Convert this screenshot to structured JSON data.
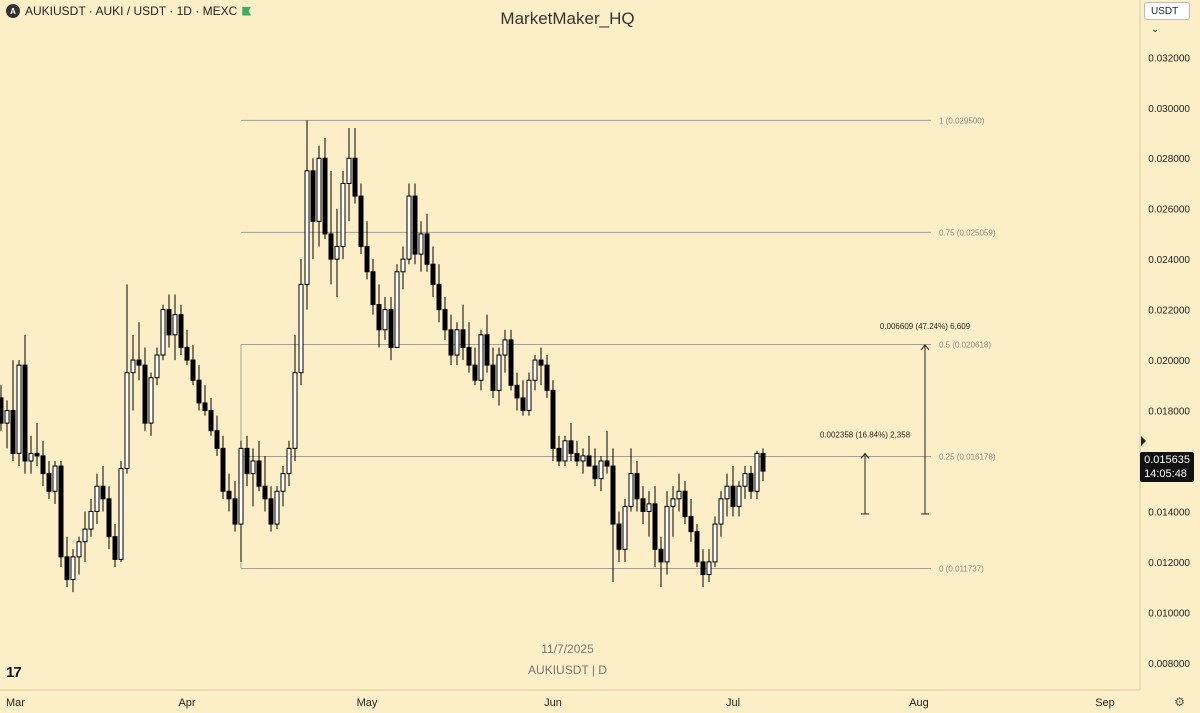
{
  "header": {
    "symbol_line": "AUKIUSDT · AUKI / USDT · 1D · MEXC",
    "logo_glyph": "A"
  },
  "watermark": "MarketMaker_HQ",
  "unit_selector": "USDT",
  "footer": {
    "date": "11/7/2025",
    "symbol": "AUKIUSDT | D",
    "brand": "17"
  },
  "current": {
    "price": "0.015635",
    "countdown": "14:05:48"
  },
  "colors": {
    "background": "#fcefc7",
    "candle_up": "#ffffff",
    "candle_down": "#000000",
    "fib_line": "#a0a0a0"
  },
  "chart_data": {
    "type": "candlestick",
    "ylim": [
      0.0072,
      0.0334
    ],
    "y_ticks": [
      "0.032000",
      "0.030000",
      "0.028000",
      "0.026000",
      "0.024000",
      "0.022000",
      "0.020000",
      "0.018000",
      "0.016000",
      "0.014000",
      "0.012000",
      "0.010000",
      "0.008000"
    ],
    "x_labels": [
      "Mar",
      "Apr",
      "May",
      "Jun",
      "Jul",
      "Aug",
      "Sep"
    ],
    "x_label_days": [
      0,
      31,
      61,
      92,
      122,
      153,
      184
    ],
    "fib_levels": [
      {
        "value": 0.0295,
        "label": "1 (0.029500)"
      },
      {
        "value": 0.025059,
        "label": "0.75 (0.025059)"
      },
      {
        "value": 0.020618,
        "label": "0.5 (0.020618)"
      },
      {
        "value": 0.016178,
        "label": "0.25 (0.016178)"
      },
      {
        "value": 0.011737,
        "label": "0 (0.011737)"
      }
    ],
    "fib_start_day": 40,
    "fib_end_day": 155,
    "measures": [
      {
        "day": 144,
        "from": 0.0139,
        "to": 0.0163,
        "label": "0.002358 (16.84%) 2,358"
      },
      {
        "day": 154,
        "from": 0.0139,
        "to": 0.0206,
        "label": "0.006609 (47.24%) 6,609"
      }
    ],
    "candles": [
      [
        0.0185,
        0.019,
        0.0172,
        0.0175
      ],
      [
        0.0175,
        0.0184,
        0.0165,
        0.018
      ],
      [
        0.018,
        0.02,
        0.016,
        0.0163
      ],
      [
        0.0163,
        0.02,
        0.0158,
        0.0198
      ],
      [
        0.0198,
        0.021,
        0.0155,
        0.016
      ],
      [
        0.016,
        0.017,
        0.0155,
        0.0163
      ],
      [
        0.0163,
        0.0175,
        0.0158,
        0.0162
      ],
      [
        0.0162,
        0.0168,
        0.015,
        0.0155
      ],
      [
        0.0155,
        0.016,
        0.0145,
        0.0148
      ],
      [
        0.0148,
        0.016,
        0.0143,
        0.0158
      ],
      [
        0.0158,
        0.016,
        0.0118,
        0.0122
      ],
      [
        0.0122,
        0.013,
        0.011,
        0.0113
      ],
      [
        0.0113,
        0.0125,
        0.0108,
        0.0122
      ],
      [
        0.0122,
        0.013,
        0.0115,
        0.0128
      ],
      [
        0.0128,
        0.014,
        0.012,
        0.0133
      ],
      [
        0.0133,
        0.0145,
        0.013,
        0.014
      ],
      [
        0.014,
        0.0155,
        0.0135,
        0.015
      ],
      [
        0.015,
        0.0158,
        0.014,
        0.0145
      ],
      [
        0.0145,
        0.015,
        0.0125,
        0.013
      ],
      [
        0.013,
        0.0135,
        0.0118,
        0.0121
      ],
      [
        0.0121,
        0.016,
        0.012,
        0.0157
      ],
      [
        0.0157,
        0.023,
        0.0155,
        0.0195
      ],
      [
        0.0195,
        0.021,
        0.018,
        0.02
      ],
      [
        0.02,
        0.0215,
        0.0192,
        0.0198
      ],
      [
        0.0198,
        0.0205,
        0.0172,
        0.0175
      ],
      [
        0.0175,
        0.0195,
        0.017,
        0.0193
      ],
      [
        0.0193,
        0.0205,
        0.019,
        0.0202
      ],
      [
        0.0202,
        0.0222,
        0.02,
        0.022
      ],
      [
        0.022,
        0.0226,
        0.0205,
        0.021
      ],
      [
        0.021,
        0.0226,
        0.02,
        0.0218
      ],
      [
        0.0218,
        0.0222,
        0.0202,
        0.0205
      ],
      [
        0.0205,
        0.0212,
        0.0198,
        0.02
      ],
      [
        0.02,
        0.0206,
        0.019,
        0.0192
      ],
      [
        0.0192,
        0.0198,
        0.018,
        0.0183
      ],
      [
        0.0183,
        0.019,
        0.0178,
        0.018
      ],
      [
        0.018,
        0.0185,
        0.017,
        0.0172
      ],
      [
        0.0172,
        0.0178,
        0.0162,
        0.0165
      ],
      [
        0.0165,
        0.017,
        0.0145,
        0.0148
      ],
      [
        0.0148,
        0.0155,
        0.014,
        0.0145
      ],
      [
        0.0145,
        0.0152,
        0.0132,
        0.0135
      ],
      [
        0.0135,
        0.0168,
        0.012,
        0.0165
      ],
      [
        0.0165,
        0.017,
        0.015,
        0.0155
      ],
      [
        0.0155,
        0.0165,
        0.0142,
        0.016
      ],
      [
        0.016,
        0.0168,
        0.0148,
        0.015
      ],
      [
        0.015,
        0.0162,
        0.014,
        0.0145
      ],
      [
        0.0145,
        0.015,
        0.0132,
        0.0135
      ],
      [
        0.0135,
        0.015,
        0.0133,
        0.0148
      ],
      [
        0.0148,
        0.0158,
        0.0142,
        0.0155
      ],
      [
        0.0155,
        0.0168,
        0.015,
        0.0165
      ],
      [
        0.0165,
        0.021,
        0.016,
        0.0195
      ],
      [
        0.0195,
        0.024,
        0.019,
        0.023
      ],
      [
        0.023,
        0.0295,
        0.022,
        0.0275
      ],
      [
        0.0275,
        0.028,
        0.024,
        0.0255
      ],
      [
        0.0255,
        0.0285,
        0.0245,
        0.028
      ],
      [
        0.028,
        0.0288,
        0.0248,
        0.025
      ],
      [
        0.025,
        0.0275,
        0.023,
        0.024
      ],
      [
        0.024,
        0.026,
        0.0225,
        0.0245
      ],
      [
        0.0245,
        0.0275,
        0.024,
        0.027
      ],
      [
        0.027,
        0.0292,
        0.0255,
        0.028
      ],
      [
        0.028,
        0.0292,
        0.0262,
        0.0265
      ],
      [
        0.0265,
        0.027,
        0.0242,
        0.0245
      ],
      [
        0.0245,
        0.0255,
        0.0232,
        0.0235
      ],
      [
        0.0235,
        0.024,
        0.0218,
        0.0222
      ],
      [
        0.0222,
        0.023,
        0.0205,
        0.0212
      ],
      [
        0.0212,
        0.0225,
        0.0208,
        0.022
      ],
      [
        0.022,
        0.0225,
        0.02,
        0.0205
      ],
      [
        0.0205,
        0.0238,
        0.0205,
        0.0235
      ],
      [
        0.0235,
        0.0245,
        0.0228,
        0.024
      ],
      [
        0.024,
        0.027,
        0.0238,
        0.0265
      ],
      [
        0.0265,
        0.027,
        0.0238,
        0.0242
      ],
      [
        0.0242,
        0.0255,
        0.0235,
        0.025
      ],
      [
        0.025,
        0.0258,
        0.0235,
        0.0238
      ],
      [
        0.0238,
        0.0245,
        0.0225,
        0.023
      ],
      [
        0.023,
        0.0238,
        0.0215,
        0.022
      ],
      [
        0.022,
        0.0225,
        0.0208,
        0.0212
      ],
      [
        0.0212,
        0.0218,
        0.0198,
        0.0202
      ],
      [
        0.0202,
        0.0215,
        0.0198,
        0.0212
      ],
      [
        0.0212,
        0.0222,
        0.02,
        0.0205
      ],
      [
        0.0205,
        0.0215,
        0.0195,
        0.0198
      ],
      [
        0.0198,
        0.0205,
        0.019,
        0.0192
      ],
      [
        0.0192,
        0.0212,
        0.0188,
        0.021
      ],
      [
        0.021,
        0.0218,
        0.0195,
        0.0198
      ],
      [
        0.0198,
        0.0205,
        0.0185,
        0.0188
      ],
      [
        0.0188,
        0.0205,
        0.0182,
        0.0202
      ],
      [
        0.0202,
        0.0212,
        0.0195,
        0.0208
      ],
      [
        0.0208,
        0.0212,
        0.0188,
        0.019
      ],
      [
        0.019,
        0.0195,
        0.018,
        0.0185
      ],
      [
        0.0185,
        0.0192,
        0.0178,
        0.018
      ],
      [
        0.018,
        0.0195,
        0.0178,
        0.0192
      ],
      [
        0.0192,
        0.0202,
        0.0188,
        0.02
      ],
      [
        0.02,
        0.0205,
        0.019,
        0.0198
      ],
      [
        0.0198,
        0.0202,
        0.0185,
        0.0188
      ],
      [
        0.0188,
        0.0192,
        0.016,
        0.0165
      ],
      [
        0.0165,
        0.017,
        0.0158,
        0.016
      ],
      [
        0.016,
        0.017,
        0.0158,
        0.0168
      ],
      [
        0.0168,
        0.0175,
        0.016,
        0.0163
      ],
      [
        0.0163,
        0.0168,
        0.0158,
        0.016
      ],
      [
        0.016,
        0.0165,
        0.0155,
        0.0162
      ],
      [
        0.0162,
        0.017,
        0.016,
        0.0158
      ],
      [
        0.0158,
        0.0165,
        0.015,
        0.0153
      ],
      [
        0.0153,
        0.0162,
        0.0148,
        0.016
      ],
      [
        0.016,
        0.0172,
        0.0155,
        0.0158
      ],
      [
        0.0158,
        0.0165,
        0.0112,
        0.0135
      ],
      [
        0.0135,
        0.014,
        0.012,
        0.0125
      ],
      [
        0.0125,
        0.0145,
        0.012,
        0.0142
      ],
      [
        0.0142,
        0.0165,
        0.014,
        0.0155
      ],
      [
        0.0155,
        0.016,
        0.014,
        0.0145
      ],
      [
        0.0145,
        0.015,
        0.0135,
        0.014
      ],
      [
        0.014,
        0.0148,
        0.013,
        0.0143
      ],
      [
        0.0143,
        0.015,
        0.0118,
        0.0125
      ],
      [
        0.0125,
        0.013,
        0.011,
        0.012
      ],
      [
        0.012,
        0.0148,
        0.0115,
        0.0142
      ],
      [
        0.0142,
        0.015,
        0.013,
        0.0145
      ],
      [
        0.0145,
        0.0155,
        0.014,
        0.0148
      ],
      [
        0.0148,
        0.0152,
        0.0135,
        0.0138
      ],
      [
        0.0138,
        0.0145,
        0.0128,
        0.0132
      ],
      [
        0.0132,
        0.0135,
        0.0118,
        0.012
      ],
      [
        0.012,
        0.0125,
        0.011,
        0.0115
      ],
      [
        0.0115,
        0.0125,
        0.0112,
        0.012
      ],
      [
        0.012,
        0.0138,
        0.0118,
        0.0135
      ],
      [
        0.0135,
        0.0148,
        0.013,
        0.0145
      ],
      [
        0.0145,
        0.0155,
        0.0138,
        0.015
      ],
      [
        0.015,
        0.0158,
        0.0138,
        0.0142
      ],
      [
        0.0142,
        0.0152,
        0.0138,
        0.015
      ],
      [
        0.015,
        0.0158,
        0.0145,
        0.0155
      ],
      [
        0.0155,
        0.0158,
        0.0145,
        0.0148
      ],
      [
        0.0148,
        0.0164,
        0.0145,
        0.0163
      ],
      [
        0.0163,
        0.0165,
        0.0152,
        0.0156
      ]
    ]
  }
}
